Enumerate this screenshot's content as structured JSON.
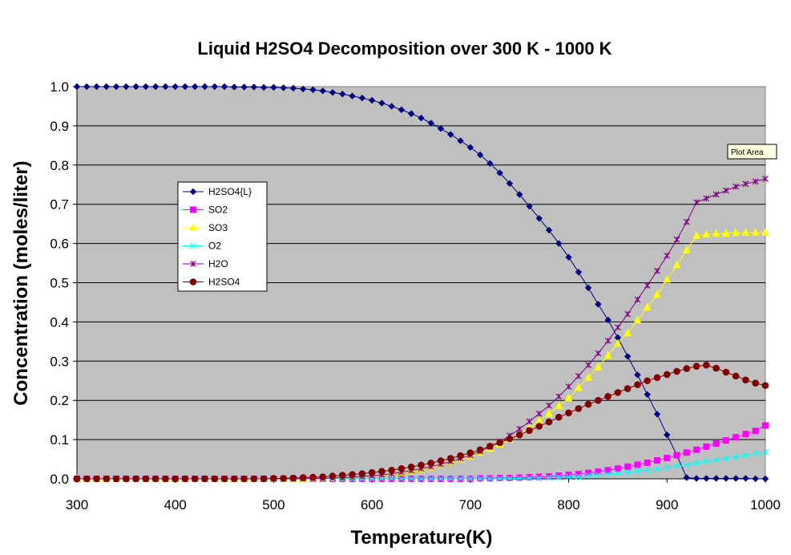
{
  "chart_data": {
    "type": "line",
    "title": "Liquid H2SO4 Decomposition over 300 K - 1000 K",
    "xlabel": "Temperature(K)",
    "ylabel": "Concentration (moles/liter)",
    "xlim": [
      300,
      1000
    ],
    "ylim": [
      0,
      1.0
    ],
    "xticks": [
      300,
      400,
      500,
      600,
      700,
      800,
      900,
      1000
    ],
    "yticks": [
      0.0,
      0.1,
      0.2,
      0.3,
      0.4,
      0.5,
      0.6,
      0.7,
      0.8,
      0.9,
      1.0
    ],
    "x": [
      300,
      310,
      320,
      330,
      340,
      350,
      360,
      370,
      380,
      390,
      400,
      410,
      420,
      430,
      440,
      450,
      460,
      470,
      480,
      490,
      500,
      510,
      520,
      530,
      540,
      550,
      560,
      570,
      580,
      590,
      600,
      610,
      620,
      630,
      640,
      650,
      660,
      670,
      680,
      690,
      700,
      710,
      720,
      730,
      740,
      750,
      760,
      770,
      780,
      790,
      800,
      810,
      820,
      830,
      840,
      850,
      860,
      870,
      880,
      890,
      900,
      910,
      920,
      930,
      940,
      950,
      960,
      970,
      980,
      990,
      1000
    ],
    "grid": true,
    "plot_background": "#c0c0c0",
    "legend_position": "left",
    "series": [
      {
        "name": "H2SO4{L}",
        "color": "#000080",
        "marker": "diamond",
        "values": [
          1.0,
          1.0,
          1.0,
          1.0,
          1.0,
          1.0,
          1.0,
          1.0,
          1.0,
          1.0,
          1.0,
          1.0,
          1.0,
          1.0,
          1.0,
          1.0,
          0.999,
          0.999,
          0.999,
          0.998,
          0.998,
          0.997,
          0.996,
          0.994,
          0.992,
          0.989,
          0.985,
          0.981,
          0.976,
          0.971,
          0.965,
          0.958,
          0.95,
          0.941,
          0.931,
          0.92,
          0.907,
          0.893,
          0.878,
          0.862,
          0.845,
          0.826,
          0.804,
          0.78,
          0.753,
          0.725,
          0.695,
          0.664,
          0.634,
          0.6,
          0.565,
          0.527,
          0.487,
          0.445,
          0.405,
          0.36,
          0.312,
          0.265,
          0.215,
          0.165,
          0.112,
          0.06,
          0.003,
          0.001,
          0.001,
          0.001,
          0.001,
          0.001,
          0.001,
          0.0,
          0.0
        ]
      },
      {
        "name": "SO2",
        "color": "#ff00ff",
        "marker": "square",
        "values": [
          0.0,
          0.0,
          0.0,
          0.0,
          0.0,
          0.0,
          0.0,
          0.0,
          0.0,
          0.0,
          0.0,
          0.0,
          0.0,
          0.0,
          0.0,
          0.0,
          0.0,
          0.0,
          0.0,
          0.0,
          0.0,
          0.0,
          0.0,
          0.0,
          0.0,
          0.0,
          0.0,
          0.0,
          0.0,
          0.0,
          0.0,
          0.0,
          0.0,
          0.0,
          0.0,
          0.0,
          0.0,
          0.0,
          0.0,
          0.0,
          0.0,
          0.001,
          0.001,
          0.002,
          0.002,
          0.003,
          0.004,
          0.005,
          0.006,
          0.008,
          0.01,
          0.012,
          0.015,
          0.018,
          0.022,
          0.026,
          0.031,
          0.036,
          0.041,
          0.047,
          0.053,
          0.06,
          0.067,
          0.074,
          0.082,
          0.09,
          0.098,
          0.106,
          0.114,
          0.122,
          0.136
        ]
      },
      {
        "name": "SO3",
        "color": "#ffff00",
        "marker": "triangle",
        "values": [
          0.0,
          0.0,
          0.0,
          0.0,
          0.0,
          0.0,
          0.0,
          0.0,
          0.0,
          0.0,
          0.0,
          0.0,
          0.0,
          0.0,
          0.0,
          0.0,
          0.0,
          0.0,
          0.0,
          0.0,
          0.0,
          0.0,
          0.0,
          0.0,
          0.001,
          0.001,
          0.002,
          0.003,
          0.004,
          0.006,
          0.008,
          0.01,
          0.013,
          0.016,
          0.02,
          0.025,
          0.03,
          0.036,
          0.043,
          0.05,
          0.058,
          0.067,
          0.077,
          0.088,
          0.1,
          0.115,
          0.13,
          0.148,
          0.166,
          0.186,
          0.206,
          0.232,
          0.258,
          0.285,
          0.315,
          0.345,
          0.372,
          0.405,
          0.437,
          0.47,
          0.508,
          0.545,
          0.583,
          0.62,
          0.623,
          0.625,
          0.626,
          0.627,
          0.628,
          0.628,
          0.628
        ]
      },
      {
        "name": "O2",
        "color": "#00ffff",
        "marker": "x",
        "values": [
          0.0,
          0.0,
          0.0,
          0.0,
          0.0,
          0.0,
          0.0,
          0.0,
          0.0,
          0.0,
          0.0,
          0.0,
          0.0,
          0.0,
          0.0,
          0.0,
          0.0,
          0.0,
          0.0,
          0.0,
          0.0,
          0.0,
          0.0,
          0.0,
          0.0,
          0.0,
          0.0,
          0.0,
          0.0,
          0.0,
          0.0,
          0.0,
          0.0,
          0.0,
          0.0,
          0.0,
          0.0,
          0.0,
          0.0,
          0.0,
          0.0,
          0.0,
          0.0,
          0.0,
          0.001,
          0.001,
          0.002,
          0.002,
          0.003,
          0.004,
          0.005,
          0.006,
          0.008,
          0.01,
          0.012,
          0.014,
          0.016,
          0.019,
          0.022,
          0.025,
          0.028,
          0.032,
          0.036,
          0.04,
          0.044,
          0.048,
          0.052,
          0.056,
          0.06,
          0.064,
          0.068
        ]
      },
      {
        "name": "H2O",
        "color": "#800080",
        "marker": "star",
        "values": [
          0.0,
          0.0,
          0.0,
          0.0,
          0.0,
          0.0,
          0.0,
          0.0,
          0.0,
          0.0,
          0.0,
          0.0,
          0.0,
          0.0,
          0.0,
          0.0,
          0.0,
          0.0,
          0.0,
          0.0,
          0.0,
          0.0,
          0.0,
          0.0,
          0.001,
          0.001,
          0.002,
          0.003,
          0.004,
          0.006,
          0.008,
          0.01,
          0.013,
          0.017,
          0.021,
          0.026,
          0.031,
          0.037,
          0.044,
          0.052,
          0.06,
          0.07,
          0.082,
          0.095,
          0.11,
          0.127,
          0.146,
          0.166,
          0.187,
          0.21,
          0.235,
          0.262,
          0.29,
          0.32,
          0.352,
          0.386,
          0.42,
          0.457,
          0.493,
          0.53,
          0.569,
          0.61,
          0.655,
          0.705,
          0.715,
          0.725,
          0.735,
          0.745,
          0.752,
          0.758,
          0.765
        ]
      },
      {
        "name": "H2SO4",
        "color": "#800000",
        "marker": "circle",
        "values": [
          0.0,
          0.0,
          0.0,
          0.0,
          0.0,
          0.0,
          0.0,
          0.0,
          0.0,
          0.0,
          0.0,
          0.0,
          0.0,
          0.0,
          0.0,
          0.0,
          0.0,
          0.0,
          0.0,
          0.0,
          0.001,
          0.001,
          0.002,
          0.003,
          0.004,
          0.005,
          0.007,
          0.009,
          0.011,
          0.013,
          0.016,
          0.019,
          0.022,
          0.026,
          0.03,
          0.035,
          0.04,
          0.046,
          0.052,
          0.059,
          0.066,
          0.074,
          0.083,
          0.092,
          0.102,
          0.112,
          0.123,
          0.134,
          0.145,
          0.157,
          0.168,
          0.179,
          0.19,
          0.2,
          0.21,
          0.22,
          0.23,
          0.24,
          0.25,
          0.258,
          0.266,
          0.274,
          0.281,
          0.287,
          0.29,
          0.282,
          0.272,
          0.262,
          0.252,
          0.244,
          0.238
        ]
      }
    ]
  },
  "tooltip": {
    "text": "Plot Area"
  }
}
